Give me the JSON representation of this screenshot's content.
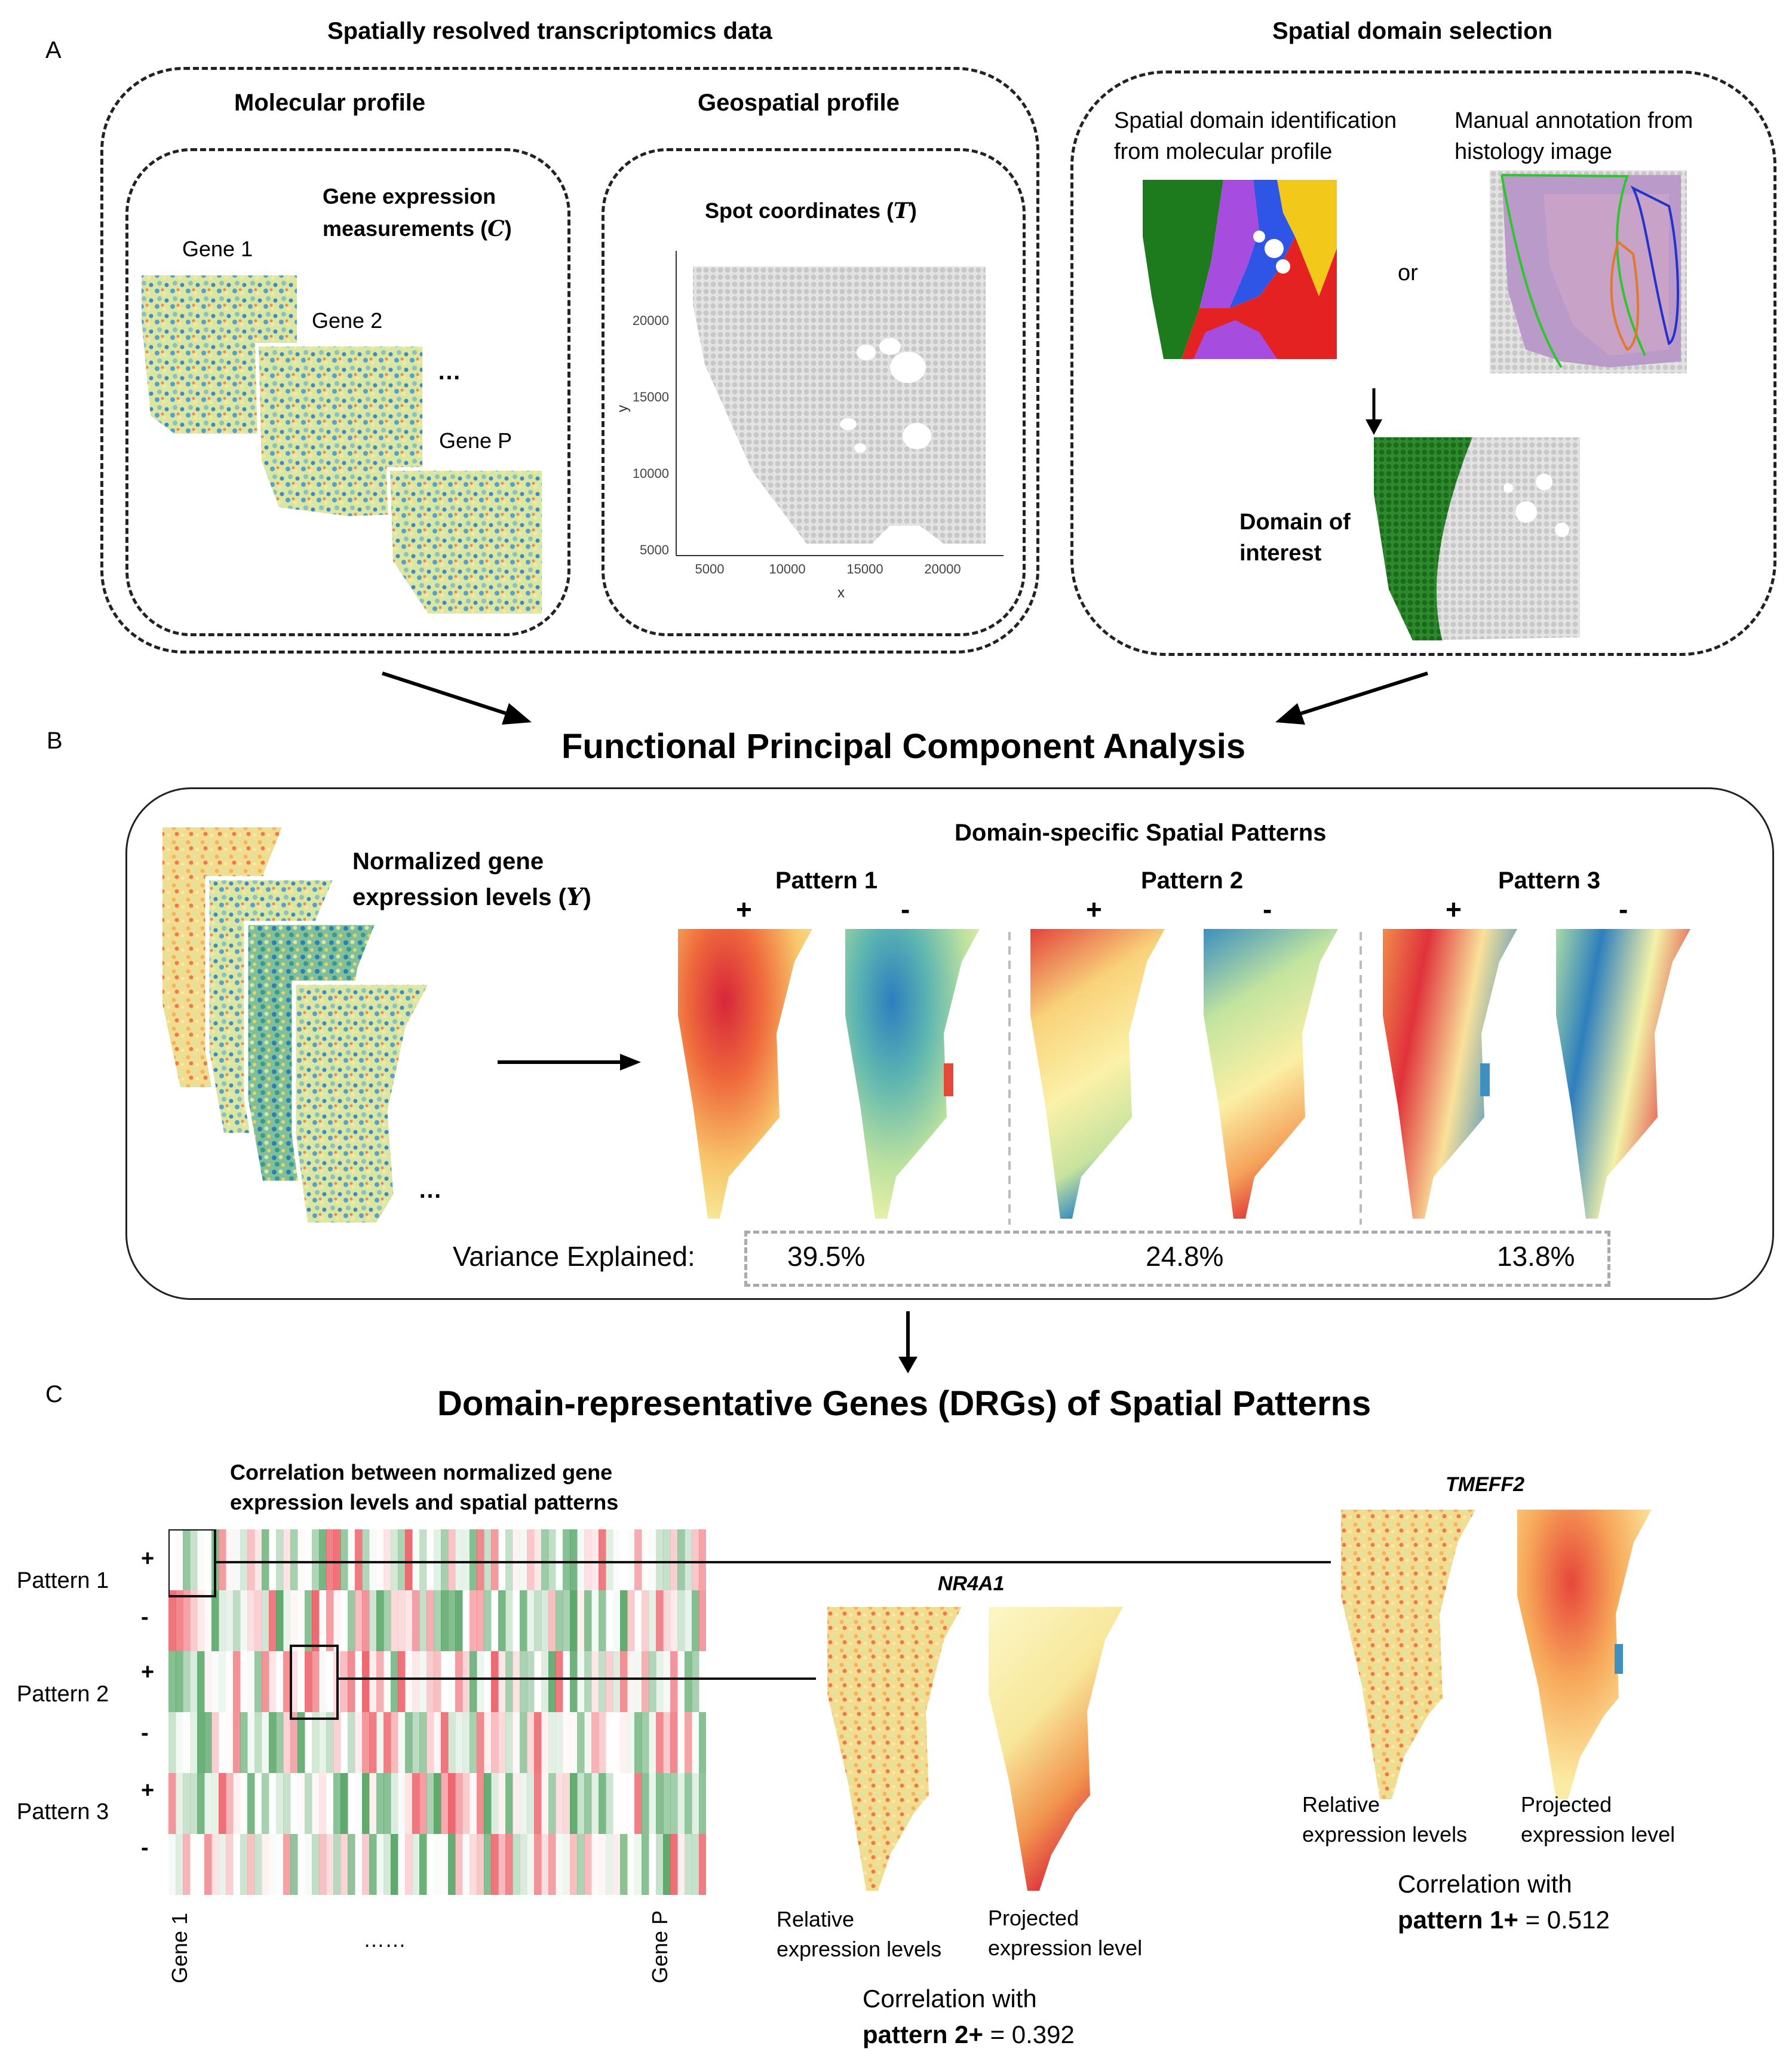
{
  "panelA": {
    "label": "A",
    "left_title": "Spatially resolved transcriptomics data",
    "right_title": "Spatial domain selection",
    "molecular_title": "Molecular profile",
    "geospatial_title": "Geospatial profile",
    "gene_expr_label_line1": "Gene expression",
    "gene_expr_label_line2": "measurements (",
    "gene_expr_symbol": "C",
    "gene_expr_close": ")",
    "gene1": "Gene 1",
    "gene2": "Gene 2",
    "geneP": "Gene P",
    "ellipsis": "…",
    "spot_coords_label": "Spot coordinates (",
    "spot_coords_symbol": "T",
    "spot_coords_close": ")",
    "y_axis_title": "y",
    "x_axis_title": "x",
    "y_ticks": [
      "20000",
      "15000",
      "10000",
      "5000"
    ],
    "x_ticks": [
      "5000",
      "10000",
      "15000",
      "20000"
    ],
    "domain_id_line1": "Spatial domain identification",
    "domain_id_line2": "from molecular profile",
    "manual_line1": "Manual annotation from",
    "manual_line2": "histology image",
    "or": "or",
    "domain_of_interest_line1": "Domain of",
    "domain_of_interest_line2": "interest"
  },
  "panelB": {
    "label": "B",
    "title": "Functional Principal Component Analysis",
    "normalized_line1": "Normalized gene",
    "normalized_line2": "expression levels (",
    "normalized_symbol": "Y",
    "normalized_close": ")",
    "ellipsis": "…",
    "patterns_title": "Domain-specific Spatial Patterns",
    "patterns": [
      {
        "name": "Pattern 1",
        "plus": "+",
        "minus": "-",
        "variance": "39.5%"
      },
      {
        "name": "Pattern 2",
        "plus": "+",
        "minus": "-",
        "variance": "24.8%"
      },
      {
        "name": "Pattern 3",
        "plus": "+",
        "minus": "-",
        "variance": "13.8%"
      }
    ],
    "variance_label": "Variance Explained:"
  },
  "panelC": {
    "label": "C",
    "title": "Domain-representative Genes (DRGs) of Spatial Patterns",
    "corr_title_line1": "Correlation between normalized gene",
    "corr_title_line2": "expression levels and spatial patterns",
    "rows": [
      {
        "name": "Pattern 1",
        "plus": "+",
        "minus": "-"
      },
      {
        "name": "Pattern 2",
        "plus": "+",
        "minus": "-"
      },
      {
        "name": "Pattern 3",
        "plus": "+",
        "minus": "-"
      }
    ],
    "gene_first": "Gene 1",
    "gene_last": "Gene P",
    "gene_dots": "……",
    "nr4a1": {
      "gene": "NR4A1",
      "relative_line1": "Relative",
      "relative_line2": "expression levels",
      "projected_line1": "Projected",
      "projected_line2": "expression level",
      "corr_line1": "Correlation with",
      "corr_bold": "pattern 2+",
      "corr_value": " = 0.392"
    },
    "tmeff2": {
      "gene": "TMEFF2",
      "relative_line1": "Relative",
      "relative_line2": "expression levels",
      "projected_line1": "Projected",
      "projected_line2": "expression level",
      "corr_line1": "Correlation with",
      "corr_bold": "pattern 1+",
      "corr_value": " = 0.512"
    }
  }
}
